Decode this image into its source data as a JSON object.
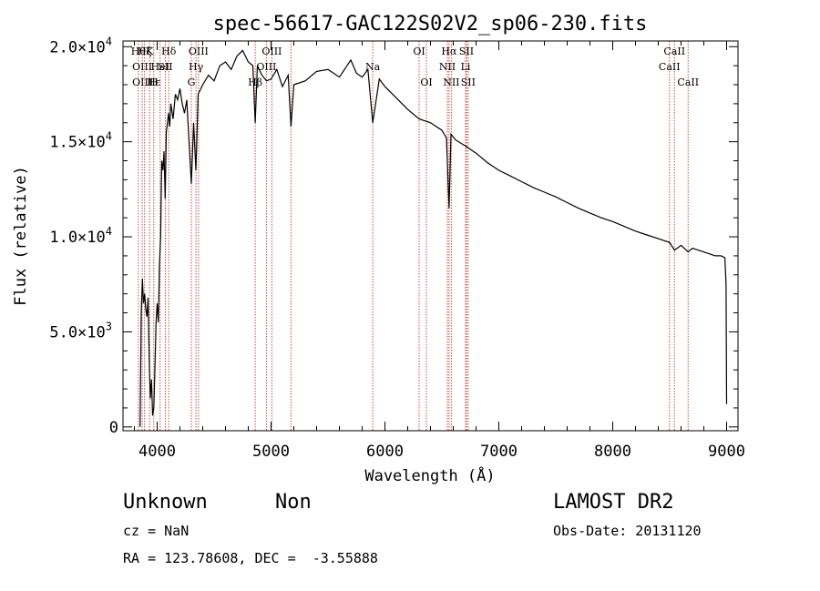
{
  "chart_data": {
    "type": "line",
    "title": "spec-56617-GAC122S02V2_sp06-230.fits",
    "xlabel": "Wavelength (Å)",
    "ylabel": "Flux (relative)",
    "xlim": [
      3700,
      9100
    ],
    "ylim": [
      -200,
      20300
    ],
    "x_ticks": [
      4000,
      5000,
      6000,
      7000,
      8000,
      9000
    ],
    "y_ticks": [
      {
        "value": 0,
        "mantissa": "0",
        "exp": ""
      },
      {
        "value": 5000,
        "mantissa": "5.0×10",
        "exp": "3"
      },
      {
        "value": 10000,
        "mantissa": "1.0×10",
        "exp": "4"
      },
      {
        "value": 15000,
        "mantissa": "1.5×10",
        "exp": "4"
      },
      {
        "value": 20000,
        "mantissa": "2.0×10",
        "exp": "4"
      }
    ],
    "grid": false,
    "series": [
      {
        "x": [
          3850,
          3860,
          3870,
          3880,
          3890,
          3900,
          3910,
          3920,
          3930,
          3940,
          3950,
          3960,
          3970,
          3980,
          3990,
          4000,
          4010,
          4020,
          4030,
          4040,
          4050,
          4060,
          4070,
          4080,
          4090,
          4100,
          4110,
          4120,
          4140,
          4160,
          4180,
          4200,
          4220,
          4240,
          4260,
          4280,
          4300,
          4320,
          4340,
          4360,
          4400,
          4450,
          4500,
          4550,
          4600,
          4650,
          4700,
          4750,
          4800,
          4840,
          4861,
          4880,
          4920,
          4960,
          5000,
          5050,
          5100,
          5150,
          5175,
          5200,
          5300,
          5400,
          5500,
          5600,
          5700,
          5750,
          5800,
          5850,
          5893,
          5950,
          6000,
          6100,
          6200,
          6300,
          6400,
          6500,
          6540,
          6563,
          6580,
          6620,
          6700,
          6800,
          6900,
          7000,
          7100,
          7200,
          7300,
          7400,
          7500,
          7600,
          7700,
          7800,
          7900,
          8000,
          8100,
          8200,
          8300,
          8400,
          8500,
          8542,
          8600,
          8662,
          8700,
          8800,
          8900,
          8950,
          8985,
          8995,
          9000
        ],
        "y": [
          0,
          6000,
          7800,
          6500,
          7000,
          6200,
          5800,
          6800,
          3500,
          1500,
          2500,
          600,
          1000,
          3000,
          5500,
          6500,
          5500,
          8500,
          10000,
          14000,
          13500,
          14500,
          12000,
          15500,
          16000,
          16500,
          15800,
          17000,
          16200,
          17500,
          17200,
          17800,
          17000,
          16500,
          17200,
          15000,
          12800,
          16000,
          13500,
          17500,
          18000,
          18500,
          18200,
          19000,
          19200,
          18800,
          19500,
          19800,
          19200,
          19000,
          16000,
          19000,
          18500,
          18200,
          18300,
          18800,
          17900,
          18500,
          15800,
          18000,
          18200,
          18700,
          18800,
          18400,
          19300,
          18600,
          18400,
          18800,
          16000,
          18300,
          17900,
          17300,
          16700,
          16200,
          16000,
          15600,
          15200,
          11500,
          15400,
          15100,
          14800,
          14400,
          13900,
          13500,
          13200,
          12900,
          12600,
          12350,
          12100,
          11800,
          11500,
          11250,
          11000,
          10800,
          10550,
          10300,
          10100,
          9900,
          9700,
          9300,
          9550,
          9200,
          9400,
          9200,
          9000,
          9000,
          8900,
          7500,
          1200
        ]
      }
    ],
    "spectral_lines": [
      {
        "wavelength": 3835,
        "label": "Hθ",
        "row": 0
      },
      {
        "wavelength": 3869,
        "label": "OIII",
        "row": 1
      },
      {
        "wavelength": 3869,
        "label": "OIII",
        "row": 2
      },
      {
        "wavelength": 3889,
        "label": "Hζ",
        "row": 0
      },
      {
        "wavelength": 3934,
        "label": "K",
        "row": 0
      },
      {
        "wavelength": 3970,
        "label": "H",
        "row": 2
      },
      {
        "wavelength": 3970,
        "label": "Hε",
        "row": 2
      },
      {
        "wavelength": 4026,
        "label": "HeI",
        "row": 1
      },
      {
        "wavelength": 4072,
        "label": "SII",
        "row": 1
      },
      {
        "wavelength": 4102,
        "label": "Hδ",
        "row": 0
      },
      {
        "wavelength": 4300,
        "label": "G",
        "row": 2
      },
      {
        "wavelength": 4341,
        "label": "Hγ",
        "row": 1
      },
      {
        "wavelength": 4363,
        "label": "OIII",
        "row": 0
      },
      {
        "wavelength": 4861,
        "label": "Hβ",
        "row": 2
      },
      {
        "wavelength": 4959,
        "label": "OIII",
        "row": 1
      },
      {
        "wavelength": 5007,
        "label": "OIII",
        "row": 0
      },
      {
        "wavelength": 5175,
        "label": "",
        "row": 0
      },
      {
        "wavelength": 5893,
        "label": "Na",
        "row": 1
      },
      {
        "wavelength": 6300,
        "label": "OI",
        "row": 0
      },
      {
        "wavelength": 6364,
        "label": "OI",
        "row": 2
      },
      {
        "wavelength": 6548,
        "label": "NII",
        "row": 1
      },
      {
        "wavelength": 6563,
        "label": "Hα",
        "row": 0
      },
      {
        "wavelength": 6583,
        "label": "NII",
        "row": 2
      },
      {
        "wavelength": 6708,
        "label": "Li",
        "row": 1
      },
      {
        "wavelength": 6716,
        "label": "SII",
        "row": 0
      },
      {
        "wavelength": 6731,
        "label": "SII",
        "row": 2
      },
      {
        "wavelength": 8498,
        "label": "CaII",
        "row": 1
      },
      {
        "wavelength": 8542,
        "label": "CaII",
        "row": 0
      },
      {
        "wavelength": 8662,
        "label": "CaII",
        "row": 2
      }
    ]
  },
  "info": {
    "class_name": "Unknown",
    "subclass": "Non",
    "survey": "LAMOST DR2",
    "cz": "cz = NaN",
    "obs_date": "Obs-Date: 20131120",
    "coords": "RA = 123.78608, DEC =  -3.55888"
  },
  "colors": {
    "spectrum": "#000000",
    "line_marker": "#c0504d",
    "axes": "#000000"
  }
}
